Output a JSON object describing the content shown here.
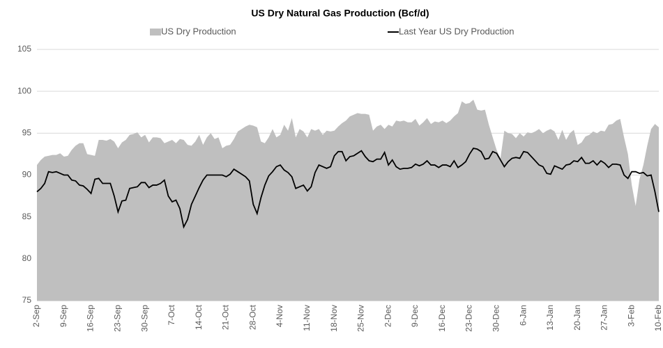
{
  "chart_data": {
    "type": "area-line",
    "title": "US Dry Natural Gas Production (Bcf/d)",
    "categories": [
      "2-Sep",
      null,
      null,
      null,
      null,
      null,
      null,
      "9-Sep",
      null,
      null,
      null,
      null,
      null,
      null,
      "16-Sep",
      null,
      null,
      null,
      null,
      null,
      null,
      "23-Sep",
      null,
      null,
      null,
      null,
      null,
      null,
      "30-Sep",
      null,
      null,
      null,
      null,
      null,
      null,
      "7-Oct",
      null,
      null,
      null,
      null,
      null,
      null,
      "14-Oct",
      null,
      null,
      null,
      null,
      null,
      null,
      "21-Oct",
      null,
      null,
      null,
      null,
      null,
      null,
      "28-Oct",
      null,
      null,
      null,
      null,
      null,
      null,
      "4-Nov",
      null,
      null,
      null,
      null,
      null,
      null,
      "11-Nov",
      null,
      null,
      null,
      null,
      null,
      null,
      "18-Nov",
      null,
      null,
      null,
      null,
      null,
      null,
      "25-Nov",
      null,
      null,
      null,
      null,
      null,
      null,
      "2-Dec",
      null,
      null,
      null,
      null,
      null,
      null,
      "9-Dec",
      null,
      null,
      null,
      null,
      null,
      null,
      "16-Dec",
      null,
      null,
      null,
      null,
      null,
      null,
      "23-Dec",
      null,
      null,
      null,
      null,
      null,
      null,
      "30-Dec",
      null,
      null,
      null,
      null,
      null,
      null,
      "6-Jan",
      null,
      null,
      null,
      null,
      null,
      null,
      "13-Jan",
      null,
      null,
      null,
      null,
      null,
      null,
      "20-Jan",
      null,
      null,
      null,
      null,
      null,
      null,
      "27-Jan",
      null,
      null,
      null,
      null,
      null,
      null,
      "3-Feb",
      null,
      null,
      null,
      null,
      null,
      null,
      "10-Feb"
    ],
    "series": [
      {
        "name": "US Dry Production",
        "kind": "area",
        "color": "#bfbfbf",
        "values": [
          91.2,
          91.8,
          92.2,
          92.3,
          92.4,
          92.4,
          92.6,
          92.2,
          92.3,
          93.0,
          93.5,
          93.8,
          93.8,
          92.5,
          92.4,
          92.3,
          94.2,
          94.2,
          94.1,
          94.3,
          94.0,
          93.2,
          93.9,
          94.2,
          94.8,
          94.9,
          95.1,
          94.5,
          94.8,
          93.9,
          94.5,
          94.5,
          94.4,
          93.8,
          94.0,
          94.2,
          93.8,
          94.3,
          94.2,
          93.6,
          93.5,
          94.0,
          94.8,
          93.6,
          94.5,
          95.0,
          94.3,
          94.5,
          93.2,
          93.5,
          93.6,
          94.3,
          95.2,
          95.5,
          95.8,
          96.0,
          95.9,
          95.7,
          94.0,
          93.8,
          94.5,
          95.5,
          94.5,
          94.8,
          96.0,
          95.3,
          96.8,
          94.5,
          95.5,
          95.2,
          94.5,
          95.5,
          95.3,
          95.5,
          94.8,
          95.3,
          95.2,
          95.3,
          95.8,
          96.2,
          96.5,
          97.0,
          97.2,
          97.4,
          97.3,
          97.3,
          97.2,
          95.3,
          95.8,
          96.0,
          95.5,
          96.0,
          95.8,
          96.5,
          96.4,
          96.5,
          96.3,
          96.3,
          96.7,
          95.9,
          96.3,
          96.8,
          96.1,
          96.4,
          96.3,
          96.5,
          96.2,
          96.5,
          97.0,
          97.4,
          98.8,
          98.5,
          98.6,
          99.0,
          97.8,
          97.7,
          97.8,
          96.0,
          94.5,
          93.0,
          92.0,
          95.3,
          95.0,
          94.9,
          94.4,
          95.0,
          94.6,
          95.1,
          95.0,
          95.2,
          95.5,
          95.0,
          95.3,
          95.5,
          95.2,
          94.2,
          95.4,
          94.2,
          95.0,
          95.4,
          93.6,
          93.9,
          94.6,
          94.8,
          95.2,
          95.0,
          95.3,
          95.2,
          96.0,
          96.1,
          96.5,
          96.7,
          94.5,
          92.5,
          88.8,
          86.3,
          89.5,
          91.2,
          93.5,
          95.5,
          96.1,
          95.7
        ]
      },
      {
        "name": "Last Year US Dry Production",
        "kind": "line",
        "color": "#000000",
        "values": [
          88.0,
          88.4,
          89.0,
          90.4,
          90.3,
          90.4,
          90.2,
          90.0,
          90.0,
          89.4,
          89.3,
          88.8,
          88.7,
          88.3,
          87.8,
          89.5,
          89.6,
          89.0,
          89.0,
          89.0,
          87.5,
          85.6,
          86.9,
          87.0,
          88.4,
          88.5,
          88.6,
          89.1,
          89.1,
          88.5,
          88.8,
          88.8,
          89.0,
          89.4,
          87.5,
          86.8,
          87.0,
          86.0,
          83.8,
          84.7,
          86.5,
          87.5,
          88.5,
          89.4,
          90.0,
          90.0,
          90.0,
          90.0,
          90.0,
          89.8,
          90.1,
          90.7,
          90.4,
          90.1,
          89.8,
          89.3,
          86.5,
          85.4,
          87.3,
          88.8,
          89.9,
          90.4,
          91.0,
          91.2,
          90.6,
          90.3,
          89.8,
          88.4,
          88.6,
          88.8,
          88.1,
          88.6,
          90.3,
          91.2,
          91.0,
          90.8,
          91.0,
          92.3,
          92.8,
          92.8,
          91.7,
          92.2,
          92.3,
          92.6,
          92.9,
          92.2,
          91.7,
          91.6,
          91.9,
          91.9,
          92.7,
          91.2,
          91.8,
          91.0,
          90.7,
          90.8,
          90.8,
          90.9,
          91.3,
          91.1,
          91.3,
          91.7,
          91.2,
          91.2,
          90.9,
          91.2,
          91.2,
          91.0,
          91.7,
          90.9,
          91.2,
          91.6,
          92.5,
          93.2,
          93.1,
          92.8,
          91.9,
          92.0,
          92.8,
          92.6,
          91.8,
          91.0,
          91.6,
          92.0,
          92.1,
          92.0,
          92.8,
          92.7,
          92.2,
          91.7,
          91.2,
          91.0,
          90.2,
          90.1,
          91.1,
          90.9,
          90.7,
          91.2,
          91.3,
          91.7,
          91.6,
          92.1,
          91.4,
          91.4,
          91.7,
          91.2,
          91.7,
          91.4,
          90.9,
          91.3,
          91.3,
          91.2,
          90.0,
          89.6,
          90.4,
          90.4,
          90.2,
          90.3,
          89.9,
          90.0,
          88.0,
          85.6
        ]
      }
    ],
    "ylim": [
      75,
      105
    ],
    "yticks": [
      75,
      80,
      85,
      90,
      95,
      100,
      105
    ],
    "grid": true,
    "legend": "top"
  }
}
